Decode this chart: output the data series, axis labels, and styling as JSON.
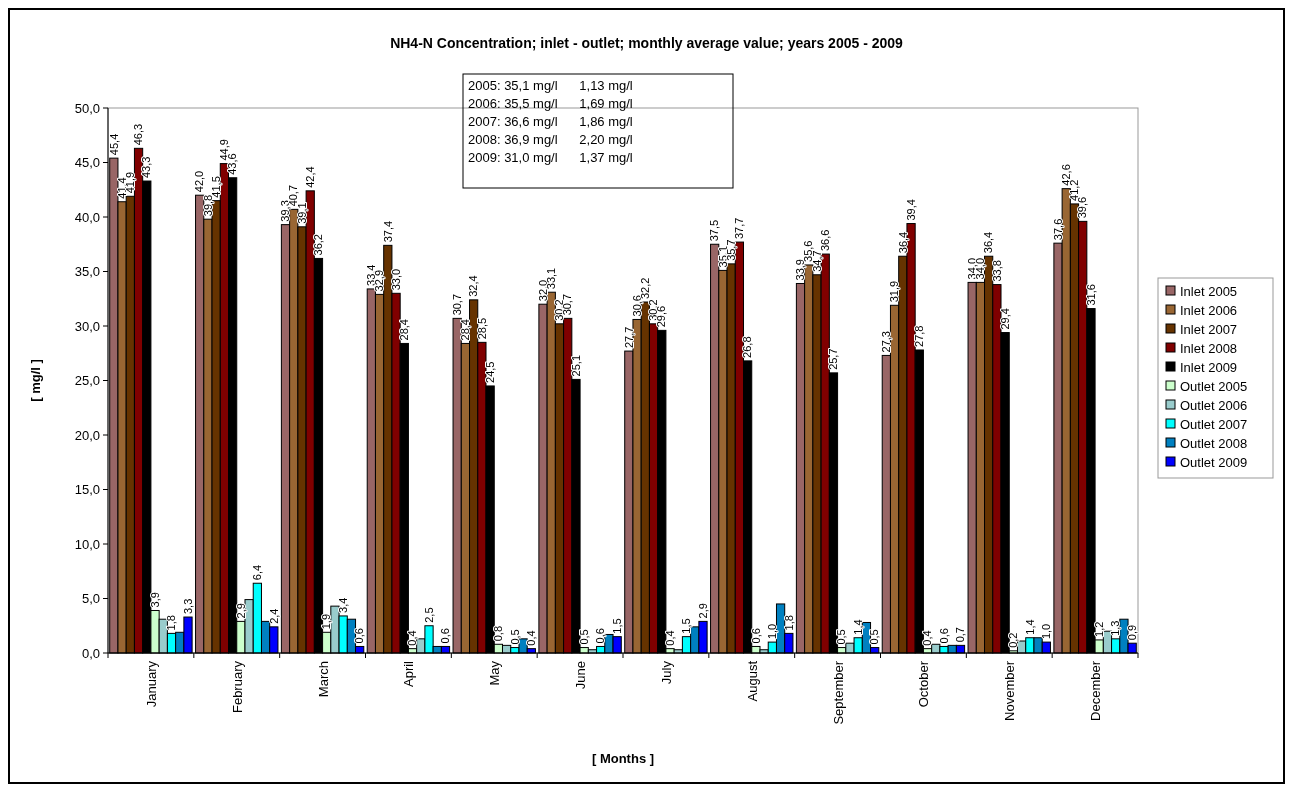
{
  "chart_data": {
    "type": "bar",
    "title": "NH4-N Concentration; inlet - outlet; monthly average value; years 2005 - 2009",
    "xlabel": "[ Months ]",
    "ylabel": "[ mg/l ]",
    "categories": [
      "January",
      "February",
      "March",
      "April",
      "May",
      "June",
      "July",
      "August",
      "September",
      "October",
      "November",
      "December"
    ],
    "series": [
      {
        "name": "Inlet 2005",
        "color": "#996666",
        "values": [
          45.4,
          42.0,
          39.3,
          33.4,
          30.7,
          32.0,
          27.7,
          37.5,
          33.9,
          27.3,
          34.0,
          37.6
        ],
        "value_labels": [
          "45,4",
          "42,0",
          "39,3",
          "33,4",
          "30,7",
          "32,0",
          "27,7",
          "37,5",
          "33,9",
          "27,3",
          "34,0",
          "37,6"
        ]
      },
      {
        "name": "Inlet 2006",
        "color": "#996633",
        "values": [
          41.4,
          39.8,
          40.7,
          32.9,
          28.4,
          33.1,
          30.6,
          35.1,
          35.6,
          31.9,
          34.0,
          42.6
        ],
        "value_labels": [
          "41,4",
          "39,8",
          "40,7",
          "32,9",
          "28,4",
          "33,1",
          "30,6",
          "35,1",
          "35,6",
          "31,9",
          "34,0",
          "42,6"
        ]
      },
      {
        "name": "Inlet 2007",
        "color": "#663300",
        "values": [
          41.9,
          41.5,
          39.1,
          37.4,
          32.4,
          30.2,
          32.2,
          35.7,
          34.7,
          36.4,
          36.4,
          41.2
        ],
        "value_labels": [
          "41,9",
          "41,5",
          "39,1",
          "37,4",
          "32,4",
          "30,2",
          "32,2",
          "35,7",
          "34,7",
          "36,4",
          "36,4",
          "41,2"
        ]
      },
      {
        "name": "Inlet 2008",
        "color": "#800000",
        "values": [
          46.3,
          44.9,
          42.4,
          33.0,
          28.5,
          30.7,
          30.2,
          37.7,
          36.6,
          39.4,
          33.8,
          39.6
        ],
        "value_labels": [
          "46,3",
          "44,9",
          "42,4",
          "33,0",
          "28,5",
          "30,7",
          "30,2",
          "37,7",
          "36,6",
          "39,4",
          "33,8",
          "39,6"
        ]
      },
      {
        "name": "Inlet 2009",
        "color": "#000000",
        "values": [
          43.3,
          43.6,
          36.2,
          28.4,
          24.5,
          25.1,
          29.6,
          26.8,
          25.7,
          27.8,
          29.4,
          31.6
        ],
        "value_labels": [
          "43,3",
          "43,6",
          "36,2",
          "28,4",
          "24,5",
          "25,1",
          "29,6",
          "26,8",
          "25,7",
          "27,8",
          "29,4",
          "31,6"
        ]
      },
      {
        "name": "Outlet 2005",
        "color": "#ccffcc",
        "values": [
          3.9,
          2.9,
          1.9,
          0.4,
          0.8,
          0.5,
          0.4,
          0.6,
          0.5,
          0.4,
          0.2,
          1.2
        ],
        "value_labels": [
          "3,9",
          "2,9",
          "1,9",
          "0,4",
          "0,8",
          "0,5",
          "0,4",
          "0,6",
          "0,5",
          "0,4",
          "0,2",
          "1,2"
        ]
      },
      {
        "name": "Outlet 2006",
        "color": "#99cccc",
        "values": [
          3.1,
          4.9,
          4.3,
          1.3,
          0.7,
          0.3,
          0.3,
          0.3,
          0.9,
          0.8,
          1.1,
          2.0
        ]
      },
      {
        "name": "Outlet 2007",
        "color": "#00ffff",
        "values": [
          1.8,
          6.4,
          3.4,
          2.5,
          0.5,
          0.6,
          1.5,
          1.0,
          1.4,
          0.6,
          1.4,
          1.3
        ],
        "value_labels": [
          "1,8",
          "6,4",
          "3,4",
          "2,5",
          "0,5",
          "0,6",
          "1,5",
          "1,0",
          "1,4",
          "0,6",
          "1,4",
          "1,3"
        ]
      },
      {
        "name": "Outlet 2008",
        "color": "#0080c0",
        "values": [
          1.9,
          2.9,
          3.1,
          0.6,
          1.3,
          1.7,
          2.4,
          4.5,
          2.8,
          0.7,
          1.4,
          3.1
        ]
      },
      {
        "name": "Outlet 2009",
        "color": "#0000ff",
        "values": [
          3.3,
          2.4,
          0.6,
          0.6,
          0.4,
          1.5,
          2.9,
          1.8,
          0.5,
          0.7,
          1.0,
          0.9
        ],
        "value_labels": [
          "3,3",
          "2,4",
          "0,6",
          "0,6",
          "0,4",
          "1,5",
          "2,9",
          "1,8",
          "0,5",
          "0,7",
          "1,0",
          "0,9"
        ]
      }
    ],
    "ylim": [
      0,
      50
    ],
    "yticks": [
      {
        "value": 0,
        "label": "0,0"
      },
      {
        "value": 5,
        "label": "5,0"
      },
      {
        "value": 10,
        "label": "10,0"
      },
      {
        "value": 15,
        "label": "15,0"
      },
      {
        "value": 20,
        "label": "20,0"
      },
      {
        "value": 25,
        "label": "25,0"
      },
      {
        "value": 30,
        "label": "30,0"
      },
      {
        "value": 35,
        "label": "35,0"
      },
      {
        "value": 40,
        "label": "40,0"
      },
      {
        "value": 45,
        "label": "45,0"
      },
      {
        "value": 50,
        "label": "50,0"
      }
    ],
    "legend": "right",
    "annotations": [
      "2005: 35,1 mg/l      1,13 mg/l",
      "2006: 35,5 mg/l      1,69 mg/l",
      "2007: 36,6 mg/l      1,86 mg/l",
      "2008: 36,9 mg/l      2,20 mg/l",
      "2009: 31,0 mg/l      1,37 mg/l"
    ]
  }
}
